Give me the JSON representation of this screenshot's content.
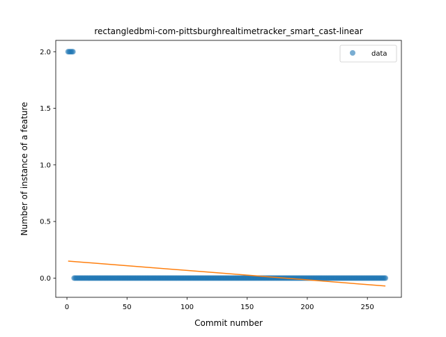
{
  "chart_data": {
    "type": "scatter",
    "title": "rectangledbmi-com-pittsburghrealtimetracker_smart_cast-linear",
    "xlabel": "Commit number",
    "ylabel": "Number of instance of a feature",
    "xlim": [
      -9.3,
      278.3
    ],
    "ylim": [
      -0.17,
      2.1
    ],
    "x_ticks": [
      0,
      50,
      100,
      150,
      200,
      250
    ],
    "x_tick_labels": [
      "0",
      "50",
      "100",
      "150",
      "200",
      "250"
    ],
    "y_ticks": [
      0.0,
      0.5,
      1.0,
      1.5,
      2.0
    ],
    "y_tick_labels": [
      "0.0",
      "0.5",
      "1.0",
      "1.5",
      "2.0"
    ],
    "grid": false,
    "legend_position": "top-right",
    "series": [
      {
        "name": "data",
        "kind": "scatter",
        "color": "#1f77b4",
        "segments": [
          {
            "x_start": 1,
            "x_end": 5,
            "y": 2.0
          },
          {
            "x_start": 6,
            "x_end": 265,
            "y": 0.0
          }
        ]
      },
      {
        "kind": "line",
        "color": "#ff7f0e",
        "x": [
          1,
          265
        ],
        "y": [
          0.15,
          -0.07
        ]
      }
    ]
  }
}
